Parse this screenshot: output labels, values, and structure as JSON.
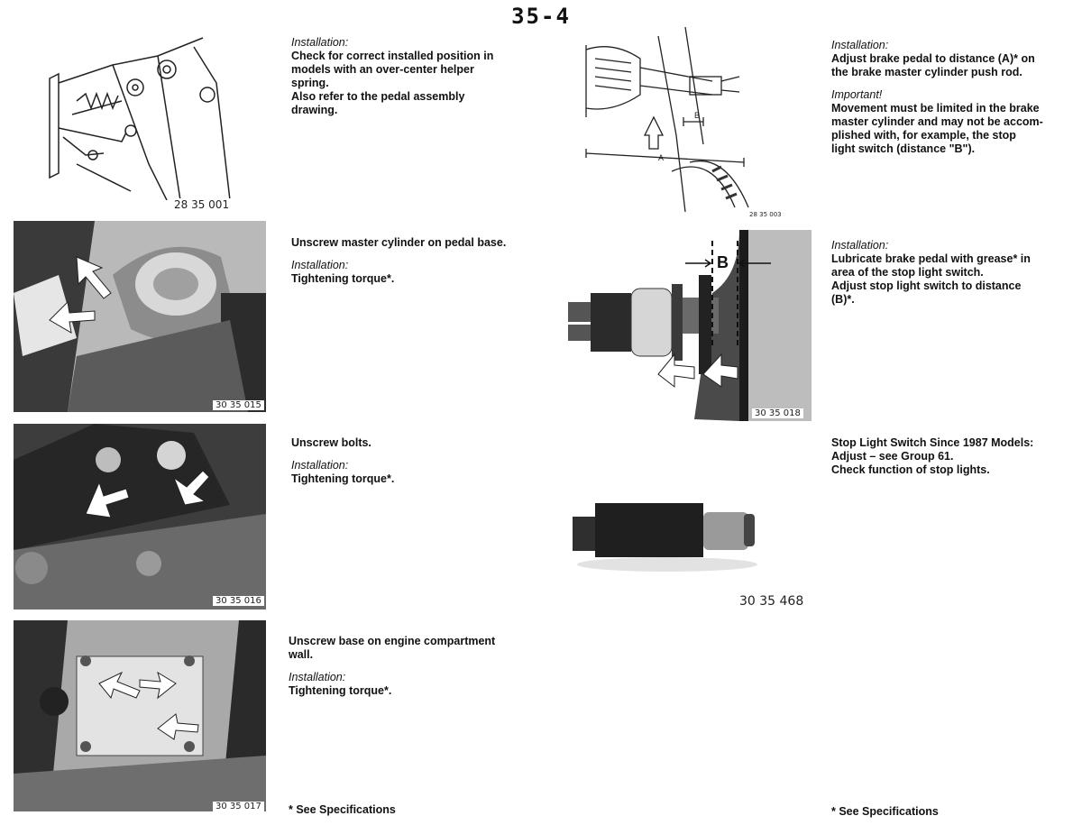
{
  "page_number": "35-4",
  "left_column": [
    {
      "figure_number": "28 35 001",
      "label": "Installation:",
      "lines": [
        "Check for correct installed position in",
        "models with an over-center helper",
        "spring.",
        "Also refer to the pedal assembly",
        "drawing."
      ]
    },
    {
      "figure_number": "30 35 015",
      "main": "Unscrew master cylinder on pedal base.",
      "label": "Installation:",
      "detail": "Tightening torque*."
    },
    {
      "figure_number": "30 35 016",
      "main": "Unscrew bolts.",
      "label": "Installation:",
      "detail": "Tightening torque*."
    },
    {
      "figure_number": "30 35 017",
      "main_lines": [
        "Unscrew base on engine compartment",
        "wall."
      ],
      "label": "Installation:",
      "detail": "Tightening torque*."
    }
  ],
  "right_column": [
    {
      "figure_number": "28 35 003",
      "label": "Installation:",
      "lines": [
        "Adjust brake pedal to distance (A)* on",
        "the brake master cylinder push rod."
      ],
      "label2": "Important!",
      "lines2": [
        "Movement must be limited in the brake",
        "master cylinder and may not be accom-",
        "plished with, for example, the stop",
        "light switch (distance \"B\")."
      ],
      "dim_a": "A",
      "dim_b": "B"
    },
    {
      "figure_number": "30 35 018",
      "label": "Installation:",
      "lines": [
        "Lubricate brake pedal with grease* in",
        "area of the stop light switch.",
        "Adjust stop light switch to distance",
        "(B)*."
      ],
      "dim_b": "B"
    },
    {
      "figure_number": "30 35 468",
      "lines": [
        "Stop Light Switch Since 1987 Models:",
        "Adjust – see Group 61.",
        "Check function of stop lights."
      ]
    }
  ],
  "footnote": "* See Specifications",
  "colors": {
    "ink": "#111111",
    "photo_bg": "#cfcfcf"
  }
}
